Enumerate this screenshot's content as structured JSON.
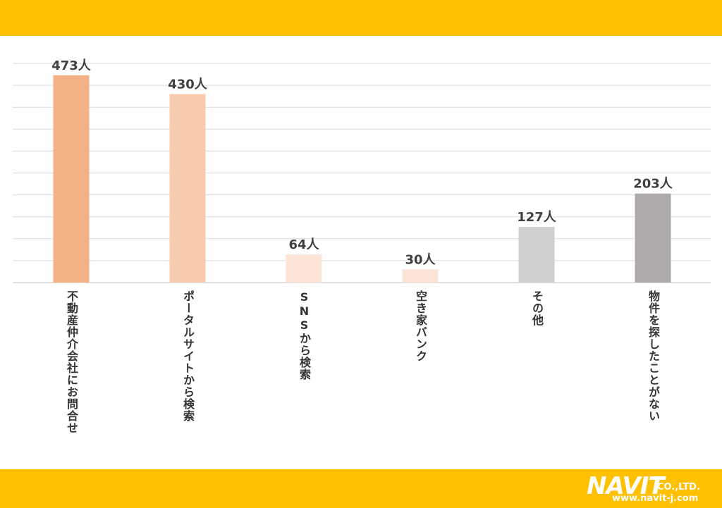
{
  "colors": {
    "band": "#FFC000",
    "grid": "#D9D9D9",
    "axis": "#BFBFBF"
  },
  "chart_data": {
    "type": "bar",
    "categories": [
      "不動産仲介会社にお問合せ",
      "ポータルサイトから検索",
      "SNSから検索",
      "空き家バンク",
      "その他",
      "物件を探したことがない"
    ],
    "values": [
      473,
      430,
      64,
      30,
      127,
      203
    ],
    "data_labels": [
      "473人",
      "430人",
      "64人",
      "30人",
      "127人",
      "203人"
    ],
    "bar_colors": [
      "#F4B183",
      "#F8CBAD",
      "#FCE4D6",
      "#FCE4D6",
      "#D0CECE",
      "#AEAAAA"
    ],
    "ylim": [
      0,
      500
    ],
    "grid": true,
    "legend": "none",
    "title": "",
    "xlabel": "",
    "ylabel": ""
  },
  "logo": {
    "word": "NAVIT",
    "suffix": "CO.,LTD.",
    "url": "www.navit-j.com"
  }
}
